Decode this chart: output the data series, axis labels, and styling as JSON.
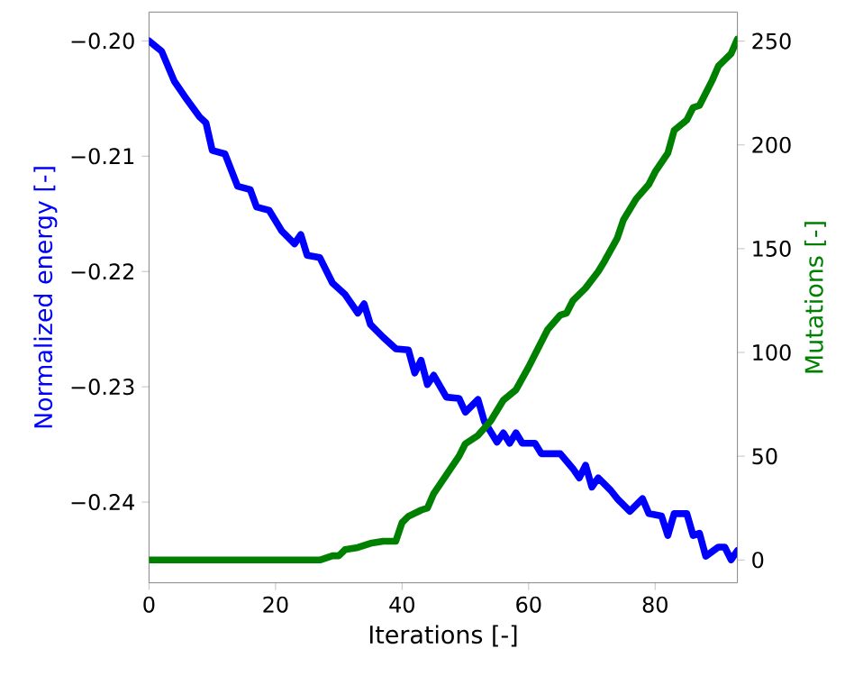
{
  "chart_data": {
    "type": "line",
    "xlabel": "Iterations [-]",
    "ylabel": "Normalized energy [-]",
    "y2label": "Mutations [-]",
    "xlim": [
      0,
      93
    ],
    "xticks": [
      0,
      20,
      40,
      60,
      80
    ],
    "ylim": [
      -0.247,
      -0.1975
    ],
    "yticks": [
      {
        "value": -0.24,
        "label": "−0.24"
      },
      {
        "value": -0.23,
        "label": "−0.23"
      },
      {
        "value": -0.22,
        "label": "−0.22"
      },
      {
        "value": -0.21,
        "label": "−0.21"
      },
      {
        "value": -0.2,
        "label": "−0.20"
      }
    ],
    "y2lim": [
      -11,
      264
    ],
    "y2ticks": [
      0,
      50,
      100,
      150,
      200,
      250
    ],
    "grid": false,
    "marker": "none",
    "line_style": "solid",
    "series": [
      {
        "color": "#0000ff",
        "x": [
          0,
          2,
          4,
          6,
          8,
          9,
          10,
          12,
          14,
          16,
          17,
          19,
          21,
          23,
          24,
          25,
          27,
          29,
          31,
          33,
          34,
          35,
          37,
          39,
          41,
          42,
          43,
          44,
          45,
          47,
          49,
          50,
          52,
          53,
          55,
          56,
          57,
          58,
          59,
          61,
          62,
          65,
          67,
          68,
          69,
          70,
          71,
          73,
          74,
          76,
          78,
          79,
          81,
          82,
          83,
          85,
          86,
          87,
          88,
          90,
          91,
          92,
          93
        ],
        "values": [
          -0.2,
          -0.2009,
          -0.2035,
          -0.2051,
          -0.2066,
          -0.2071,
          -0.2095,
          -0.2098,
          -0.2126,
          -0.2129,
          -0.2144,
          -0.2147,
          -0.2165,
          -0.2176,
          -0.2168,
          -0.2186,
          -0.2188,
          -0.221,
          -0.222,
          -0.2236,
          -0.2228,
          -0.2246,
          -0.2257,
          -0.2267,
          -0.2268,
          -0.2288,
          -0.2277,
          -0.2298,
          -0.229,
          -0.2309,
          -0.231,
          -0.2322,
          -0.2311,
          -0.233,
          -0.2348,
          -0.234,
          -0.2349,
          -0.234,
          -0.2349,
          -0.2349,
          -0.2358,
          -0.2358,
          -0.2371,
          -0.2379,
          -0.2368,
          -0.2387,
          -0.2379,
          -0.239,
          -0.2397,
          -0.2408,
          -0.2397,
          -0.241,
          -0.2412,
          -0.2429,
          -0.241,
          -0.241,
          -0.2429,
          -0.2427,
          -0.2447,
          -0.2439,
          -0.2439,
          -0.245,
          -0.2442
        ]
      },
      {
        "color": "#008000",
        "axis": "y2",
        "x": [
          0,
          27,
          29,
          30,
          31,
          33,
          35,
          37,
          39,
          40,
          41,
          43,
          44,
          45,
          47,
          49,
          50,
          52,
          54,
          56,
          58,
          60,
          61,
          63,
          65,
          66,
          67,
          69,
          71,
          72,
          74,
          75,
          77,
          79,
          80,
          82,
          83,
          85,
          86,
          87,
          89,
          90,
          91,
          92,
          93
        ],
        "values": [
          0,
          0,
          2,
          2,
          5,
          6,
          8,
          9,
          9,
          18,
          21,
          24,
          25,
          32,
          41,
          50,
          56,
          60,
          67,
          77,
          82,
          93,
          99,
          111,
          118,
          119,
          125,
          131,
          139,
          144,
          155,
          164,
          174,
          181,
          187,
          196,
          207,
          212,
          218,
          219,
          231,
          238,
          241,
          244,
          251
        ]
      }
    ]
  }
}
